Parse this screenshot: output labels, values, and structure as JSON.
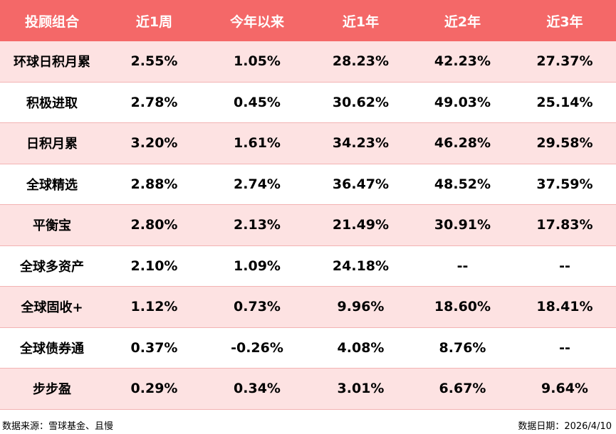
{
  "chart_data": {
    "type": "table",
    "columns": [
      "投顾组合",
      "近1周",
      "今年以来",
      "近1年",
      "近2年",
      "近3年"
    ],
    "rows": [
      [
        "环球日积月累",
        "2.55%",
        "1.05%",
        "28.23%",
        "42.23%",
        "27.37%"
      ],
      [
        "积极进取",
        "2.78%",
        "0.45%",
        "30.62%",
        "49.03%",
        "25.14%"
      ],
      [
        "日积月累",
        "3.20%",
        "1.61%",
        "34.23%",
        "46.28%",
        "29.58%"
      ],
      [
        "全球精选",
        "2.88%",
        "2.74%",
        "36.47%",
        "48.52%",
        "37.59%"
      ],
      [
        "平衡宝",
        "2.80%",
        "2.13%",
        "21.49%",
        "30.91%",
        "17.83%"
      ],
      [
        "全球多资产",
        "2.10%",
        "1.09%",
        "24.18%",
        "--",
        "--"
      ],
      [
        "全球固收+",
        "1.12%",
        "0.73%",
        "9.96%",
        "18.60%",
        "18.41%"
      ],
      [
        "全球债券通",
        "0.37%",
        "-0.26%",
        "4.08%",
        "8.76%",
        "--"
      ],
      [
        "步步盈",
        "0.29%",
        "0.34%",
        "3.01%",
        "6.67%",
        "9.64%"
      ]
    ],
    "header_color": "#f46868",
    "stripe_color": "#fde2e2"
  },
  "footer": {
    "source": "数据来源：雪球基金、且慢",
    "date": "数据日期：2026/4/10"
  }
}
